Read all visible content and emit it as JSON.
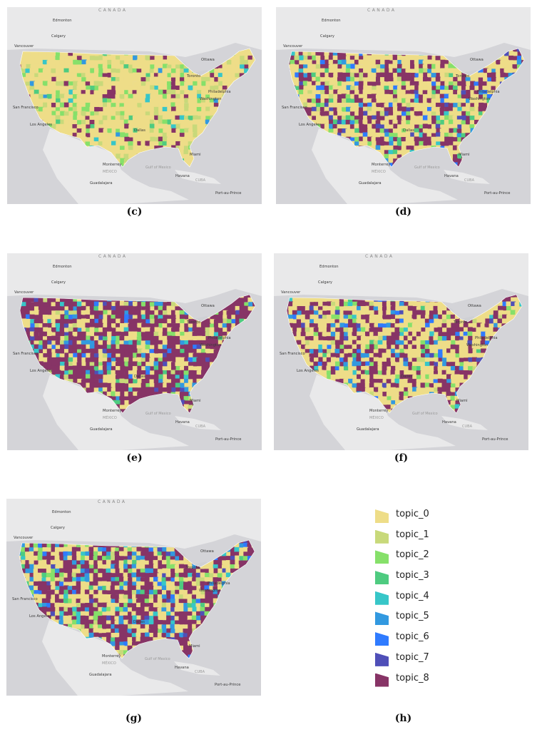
{
  "panels": [
    {
      "id": "c",
      "caption": "(c)",
      "mix": [
        0.7,
        0.1,
        0.08,
        0.02,
        0.02,
        0.01,
        0.0,
        0.0,
        0.07
      ]
    },
    {
      "id": "d",
      "caption": "(d)",
      "mix": [
        0.5,
        0.03,
        0.04,
        0.02,
        0.02,
        0.03,
        0.03,
        0.03,
        0.3
      ]
    },
    {
      "id": "e",
      "caption": "(e)",
      "mix": [
        0.25,
        0.03,
        0.04,
        0.02,
        0.02,
        0.04,
        0.02,
        0.03,
        0.55
      ]
    },
    {
      "id": "f",
      "caption": "(f)",
      "mix": [
        0.52,
        0.02,
        0.04,
        0.01,
        0.02,
        0.05,
        0.02,
        0.02,
        0.3
      ]
    },
    {
      "id": "g",
      "caption": "(g)",
      "mix": [
        0.38,
        0.02,
        0.05,
        0.02,
        0.03,
        0.1,
        0.03,
        0.02,
        0.35
      ]
    }
  ],
  "legend_caption": "(h)",
  "legend": [
    {
      "label": "topic_0",
      "color": "#eedd88"
    },
    {
      "label": "topic_1",
      "color": "#c8d97a"
    },
    {
      "label": "topic_2",
      "color": "#86e06a"
    },
    {
      "label": "topic_3",
      "color": "#4ecb80"
    },
    {
      "label": "topic_4",
      "color": "#37c6c8"
    },
    {
      "label": "topic_5",
      "color": "#3299e0"
    },
    {
      "label": "topic_6",
      "color": "#2f7bff"
    },
    {
      "label": "topic_7",
      "color": "#4f4fb8"
    },
    {
      "label": "topic_8",
      "color": "#873466"
    }
  ],
  "map_labels": {
    "country_canada": "CANADA",
    "edmonton": "Edmonton",
    "calgary": "Calgary",
    "vancouver": "Vancouver",
    "ottawa": "Ottawa",
    "toronto": "Toronto",
    "san_francisco": "San Francisco",
    "los_angeles": "Los Angeles",
    "monterrey": "Monterrey",
    "mexico": "MÉXICO",
    "gulf": "Gulf of Mexico",
    "havana": "Havana",
    "guadalajara": "Guadalajara",
    "cuba": "CUBA",
    "port_au_prince": "Port-au-Prince",
    "miami": "Miami",
    "dallas": "Dallas",
    "philadelphia": "Philadelphia",
    "washington": "Washington"
  }
}
